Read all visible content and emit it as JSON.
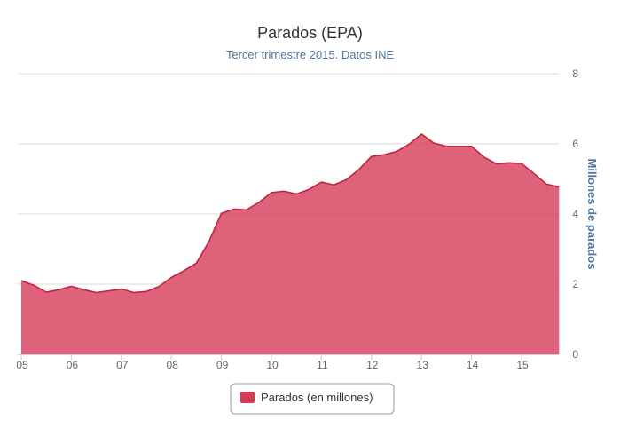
{
  "chart_data": {
    "type": "area",
    "title": "Parados (EPA)",
    "subtitle": "Tercer trimestre 2015. Datos INE",
    "ylabel": "Millones de parados",
    "xlabel": "",
    "ylim": [
      0,
      8
    ],
    "yticks": [
      "0",
      "2",
      "4",
      "6",
      "8"
    ],
    "x_range": [
      2005.0,
      2015.75
    ],
    "xticks": [
      {
        "value": 2005,
        "label": "05"
      },
      {
        "value": 2006,
        "label": "06"
      },
      {
        "value": 2007,
        "label": "07"
      },
      {
        "value": 2008,
        "label": "08"
      },
      {
        "value": 2009,
        "label": "09"
      },
      {
        "value": 2010,
        "label": "10"
      },
      {
        "value": 2011,
        "label": "11"
      },
      {
        "value": 2012,
        "label": "12"
      },
      {
        "value": 2013,
        "label": "13"
      },
      {
        "value": 2014,
        "label": "14"
      },
      {
        "value": 2015,
        "label": "15"
      }
    ],
    "grid": true,
    "legend_position": "bottom-center",
    "color": "#d63b58",
    "series": [
      {
        "name": "Parados (en millones)",
        "x": [
          2005.0,
          2005.25,
          2005.5,
          2005.75,
          2006.0,
          2006.25,
          2006.5,
          2006.75,
          2007.0,
          2007.25,
          2007.5,
          2007.75,
          2008.0,
          2008.25,
          2008.5,
          2008.75,
          2009.0,
          2009.25,
          2009.5,
          2009.75,
          2010.0,
          2010.25,
          2010.5,
          2010.75,
          2011.0,
          2011.25,
          2011.5,
          2011.75,
          2012.0,
          2012.25,
          2012.5,
          2012.75,
          2013.0,
          2013.25,
          2013.5,
          2013.75,
          2014.0,
          2014.25,
          2014.5,
          2014.75,
          2015.0,
          2015.25,
          2015.5,
          2015.75
        ],
        "values": [
          2.1,
          1.97,
          1.77,
          1.84,
          1.94,
          1.84,
          1.76,
          1.81,
          1.86,
          1.76,
          1.79,
          1.93,
          2.19,
          2.38,
          2.6,
          3.21,
          4.02,
          4.14,
          4.12,
          4.33,
          4.61,
          4.65,
          4.57,
          4.7,
          4.91,
          4.83,
          4.98,
          5.27,
          5.64,
          5.69,
          5.78,
          5.99,
          6.28,
          6.02,
          5.93,
          5.93,
          5.93,
          5.62,
          5.43,
          5.46,
          5.44,
          5.15,
          4.85,
          4.77
        ]
      }
    ]
  }
}
